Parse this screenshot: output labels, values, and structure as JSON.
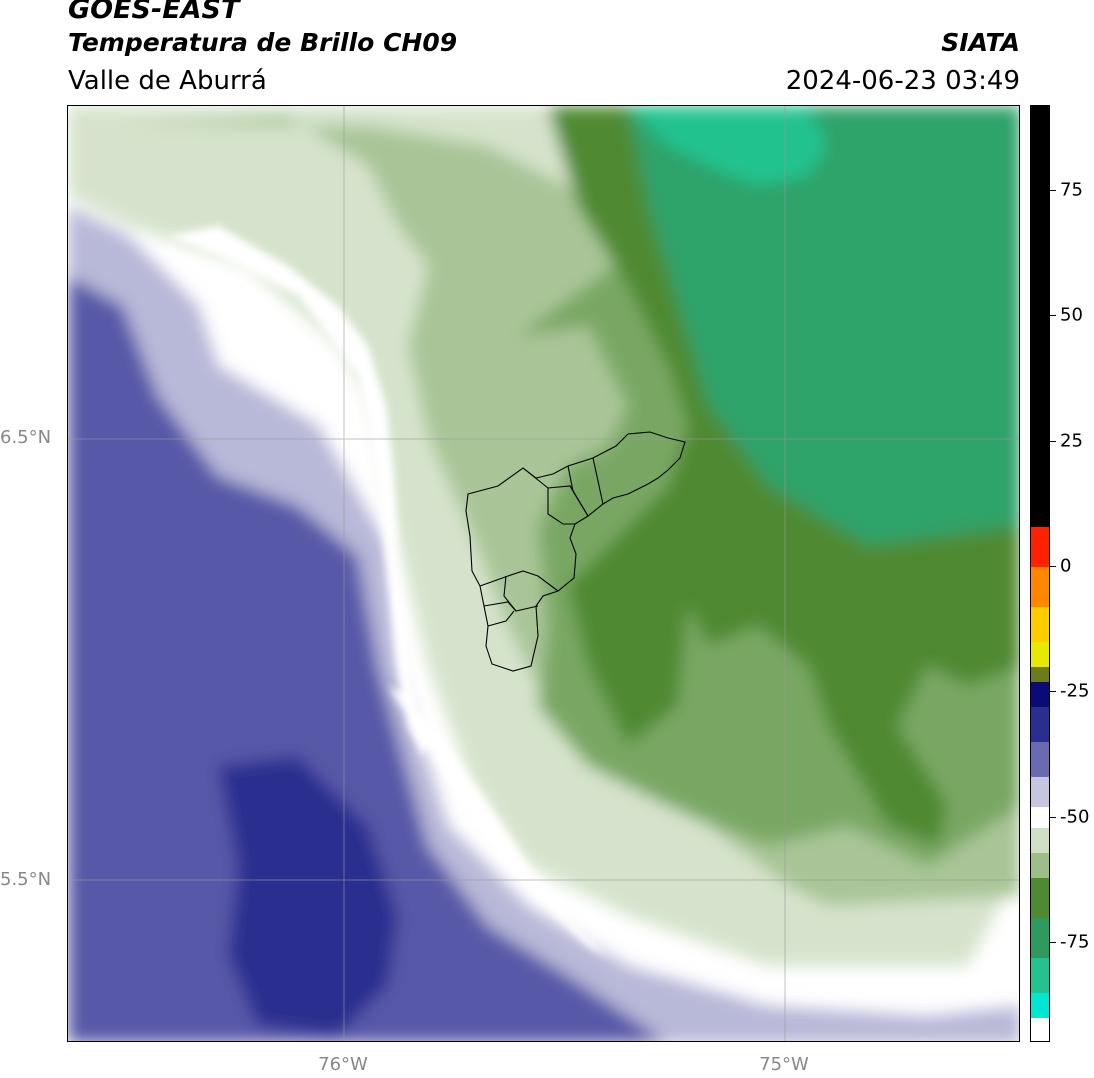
{
  "header": {
    "title": "GOES-EAST",
    "subtitle": "Temperatura de Brillo CH09",
    "region": "Valle de Aburrá",
    "organization": "SIATA",
    "datetime": "2024-06-23 03:49"
  },
  "map": {
    "lat_labels": [
      "6.5°N",
      "5.5°N"
    ],
    "lon_labels": [
      "76°W",
      "75°W"
    ],
    "colors": {
      "deep_blue": "#2b2f8f",
      "mid_blue": "#5858a8",
      "lavender": "#b8b8d8",
      "white": "#ffffff",
      "pale_green": "#d6e3cc",
      "light_green": "#a9c597",
      "mid_green": "#79a764",
      "dark_green": "#4f8a32",
      "teal": "#2ea36b",
      "cyan_green": "#23c28f"
    }
  },
  "colorbar": {
    "ticks": [
      "75",
      "50",
      "25",
      "0",
      "-25",
      "-50",
      "-75"
    ],
    "tick_values": [
      75,
      50,
      25,
      0,
      -25,
      -50,
      -75
    ],
    "range": [
      -95,
      92
    ],
    "segments": [
      {
        "from": 8,
        "to": 92,
        "color": "#000000"
      },
      {
        "from": 0,
        "to": 8,
        "color": "#ff2200"
      },
      {
        "from": -8,
        "to": 0,
        "color": "#ff8800"
      },
      {
        "from": -15,
        "to": -8,
        "color": "#ffcc00"
      },
      {
        "from": -20,
        "to": -15,
        "color": "#e6ea00"
      },
      {
        "from": -23,
        "to": -20,
        "color": "#6f7a1a"
      },
      {
        "from": -28,
        "to": -23,
        "color": "#0a0a78"
      },
      {
        "from": -35,
        "to": -28,
        "color": "#2a2e90"
      },
      {
        "from": -42,
        "to": -35,
        "color": "#6a6ab4"
      },
      {
        "from": -48,
        "to": -42,
        "color": "#c6c6e0"
      },
      {
        "from": -52,
        "to": -48,
        "color": "#ffffff"
      },
      {
        "from": -57,
        "to": -52,
        "color": "#d0e0c6"
      },
      {
        "from": -62,
        "to": -57,
        "color": "#9cbf88"
      },
      {
        "from": -70,
        "to": -62,
        "color": "#4f8a32"
      },
      {
        "from": -78,
        "to": -70,
        "color": "#2e9a5e"
      },
      {
        "from": -85,
        "to": -78,
        "color": "#23c28f"
      },
      {
        "from": -90,
        "to": -85,
        "color": "#00e6d0"
      },
      {
        "from": -95,
        "to": -90,
        "color": "#ffffff"
      }
    ]
  }
}
